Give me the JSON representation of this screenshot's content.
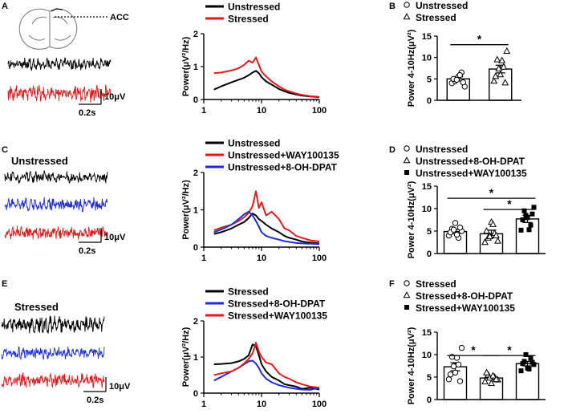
{
  "panel_labels": {
    "A": "A",
    "B": "B",
    "C": "C",
    "D": "D",
    "E": "E",
    "F": "F"
  },
  "brain": {
    "region_label": "ACC"
  },
  "traces": {
    "condition_C": "Unstressed",
    "condition_E": "Stressed",
    "scale_amplitude": "10μV",
    "scale_time": "0.2s"
  },
  "colors": {
    "black": "#000000",
    "red": "#e31a1c",
    "blue": "#1f2fd6"
  },
  "spectra": [
    {
      "legend": [
        "Unstressed",
        "Stressed"
      ],
      "colors": [
        "#000000",
        "#e31a1c"
      ]
    },
    {
      "legend": [
        "Unstressed",
        "Unstressed+WAY100135",
        "Unstressed+8-OH-DPAT"
      ],
      "colors": [
        "#000000",
        "#e31a1c",
        "#1f2fd6"
      ]
    },
    {
      "legend": [
        "Stressed",
        "Stressed+8-OH-DPAT",
        "Stressed+WAY100135"
      ],
      "colors": [
        "#000000",
        "#1f2fd6",
        "#e31a1c"
      ]
    }
  ],
  "bars_legends": [
    {
      "entries": [
        "Unstressed",
        "Stressed"
      ],
      "markers": [
        "circle",
        "triangle"
      ]
    },
    {
      "entries": [
        "Unstressed",
        "Unstressed+8-OH-DPAT",
        "Unstressed+WAY100135"
      ],
      "markers": [
        "circle",
        "triangle",
        "square"
      ]
    },
    {
      "entries": [
        "Stressed",
        "Stressed+8-OH-DPAT",
        "Stressed+WAY100135"
      ],
      "markers": [
        "circle",
        "triangle",
        "square"
      ]
    }
  ],
  "chart_data": [
    {
      "type": "line",
      "panel": "A",
      "title": "",
      "xlabel": "",
      "ylabel": "Power(μV²/Hz)",
      "xscale": "log",
      "xlim": [
        1,
        100
      ],
      "ylim": [
        0,
        2
      ],
      "xticks": [
        "1",
        "10",
        "100"
      ],
      "yticks": [
        "0",
        "1",
        "2"
      ],
      "series": [
        {
          "name": "Unstressed",
          "color": "#000000",
          "x": [
            1.5,
            2,
            3,
            4,
            5,
            6,
            7,
            8,
            9,
            10,
            12,
            15,
            20,
            25,
            30,
            40,
            50,
            70,
            100
          ],
          "y": [
            0.3,
            0.4,
            0.52,
            0.6,
            0.66,
            0.74,
            0.82,
            0.87,
            0.8,
            0.68,
            0.55,
            0.45,
            0.32,
            0.25,
            0.2,
            0.15,
            0.12,
            0.09,
            0.07
          ]
        },
        {
          "name": "Stressed",
          "color": "#e31a1c",
          "x": [
            1.5,
            2,
            3,
            4,
            5,
            6,
            7,
            8,
            9,
            10,
            12,
            15,
            20,
            25,
            30,
            40,
            50,
            70,
            100
          ],
          "y": [
            0.8,
            0.82,
            0.88,
            0.95,
            1.05,
            1.18,
            1.12,
            1.28,
            1.05,
            0.85,
            0.7,
            0.55,
            0.4,
            0.3,
            0.25,
            0.18,
            0.14,
            0.1,
            0.08
          ]
        }
      ]
    },
    {
      "type": "bar",
      "panel": "B",
      "ylabel": "Power 4-10Hz(μV²)",
      "ylim": [
        0,
        15
      ],
      "yticks": [
        "0",
        "5",
        "10",
        "15"
      ],
      "categories": [
        "Unstressed",
        "Stressed"
      ],
      "values": [
        5.0,
        7.3
      ],
      "errors": [
        0.5,
        0.9
      ],
      "points": [
        [
          4.0,
          4.5,
          5.5,
          6.5,
          3.2,
          5.0,
          4.8,
          5.9,
          4.2
        ],
        [
          4.5,
          9.5,
          6.0,
          7.8,
          11.5,
          5.6,
          7.4,
          9.3,
          4.1
        ]
      ],
      "markers": [
        "circle",
        "triangle"
      ],
      "significance": [
        {
          "pair": [
            0,
            1
          ],
          "label": "*"
        }
      ]
    },
    {
      "type": "line",
      "panel": "C",
      "title": "",
      "xlabel": "",
      "ylabel": "Power(μV²/Hz)",
      "xscale": "log",
      "xlim": [
        1,
        100
      ],
      "ylim": [
        0,
        2
      ],
      "xticks": [
        "1",
        "10",
        "100"
      ],
      "yticks": [
        "0",
        "1",
        "2"
      ],
      "series": [
        {
          "name": "Unstressed",
          "color": "#000000",
          "x": [
            1.5,
            2,
            3,
            4,
            5,
            6,
            7,
            8,
            9,
            10,
            12,
            15,
            20,
            25,
            30,
            40,
            50,
            70,
            100
          ],
          "y": [
            0.35,
            0.4,
            0.5,
            0.6,
            0.67,
            0.78,
            0.9,
            0.85,
            0.75,
            0.7,
            0.6,
            0.5,
            0.4,
            0.3,
            0.25,
            0.2,
            0.15,
            0.12,
            0.1
          ]
        },
        {
          "name": "Unstressed+WAY100135",
          "color": "#e31a1c",
          "x": [
            1.5,
            2,
            3,
            4,
            5,
            6,
            7,
            8,
            9,
            10,
            12,
            15,
            20,
            25,
            30,
            40,
            50,
            70,
            100
          ],
          "y": [
            0.45,
            0.52,
            0.6,
            0.7,
            0.8,
            0.92,
            1.1,
            1.5,
            1.05,
            1.2,
            0.85,
            0.95,
            0.75,
            0.5,
            0.45,
            0.3,
            0.25,
            0.18,
            0.15
          ]
        },
        {
          "name": "Unstressed+8-OH-DPAT",
          "color": "#1f2fd6",
          "x": [
            1.5,
            2,
            3,
            4,
            5,
            6,
            7,
            8,
            9,
            10,
            12,
            15,
            20,
            25,
            30,
            40,
            50,
            70,
            100
          ],
          "y": [
            0.4,
            0.47,
            0.6,
            0.75,
            0.88,
            0.95,
            0.85,
            0.7,
            0.55,
            0.4,
            0.3,
            0.25,
            0.2,
            0.16,
            0.14,
            0.11,
            0.1,
            0.09,
            0.08
          ]
        }
      ]
    },
    {
      "type": "bar",
      "panel": "D",
      "ylabel": "Power 4-10Hz(μV²)",
      "ylim": [
        0,
        15
      ],
      "yticks": [
        "0",
        "5",
        "10",
        "15"
      ],
      "categories": [
        "Unstressed",
        "Unstressed+8-OH-DPAT",
        "Unstressed+WAY100135"
      ],
      "values": [
        4.9,
        4.4,
        7.7
      ],
      "errors": [
        0.5,
        0.8,
        0.8
      ],
      "points": [
        [
          4.0,
          5.5,
          6.8,
          3.5,
          5.0,
          4.7,
          5.3,
          4.2,
          5.8
        ],
        [
          2.5,
          3.5,
          7.0,
          4.5,
          2.8,
          5.0,
          3.8,
          6.5,
          4.0
        ],
        [
          5.2,
          9.5,
          8.0,
          6.3,
          10.3,
          7.5,
          8.5,
          5.3,
          8.8
        ]
      ],
      "markers": [
        "circle",
        "triangle",
        "square"
      ],
      "significance": [
        {
          "pair": [
            0,
            2
          ],
          "label": "*"
        },
        {
          "pair": [
            1,
            2
          ],
          "label": "*"
        }
      ]
    },
    {
      "type": "line",
      "panel": "E",
      "title": "",
      "xlabel": "",
      "ylabel": "Power(μV²/Hz)",
      "xscale": "log",
      "xlim": [
        1,
        100
      ],
      "ylim": [
        0,
        2
      ],
      "xticks": [
        "1",
        "10",
        "100"
      ],
      "yticks": [
        "0",
        "1",
        "2"
      ],
      "series": [
        {
          "name": "Stressed",
          "color": "#000000",
          "x": [
            1.5,
            2,
            3,
            4,
            5,
            6,
            7,
            8,
            9,
            10,
            12,
            15,
            20,
            25,
            30,
            40,
            50,
            70,
            100
          ],
          "y": [
            0.8,
            0.81,
            0.83,
            0.88,
            0.95,
            1.05,
            1.35,
            1.3,
            1.05,
            0.8,
            0.6,
            0.45,
            0.35,
            0.25,
            0.22,
            0.18,
            0.12,
            0.15,
            0.1
          ]
        },
        {
          "name": "Stressed+8-OH-DPAT",
          "color": "#1f2fd6",
          "x": [
            1.5,
            2,
            3,
            4,
            5,
            6,
            7,
            8,
            9,
            10,
            12,
            15,
            20,
            25,
            30,
            40,
            50,
            70,
            100
          ],
          "y": [
            0.35,
            0.45,
            0.6,
            0.7,
            0.8,
            0.88,
            0.9,
            0.82,
            0.7,
            0.55,
            0.4,
            0.3,
            0.22,
            0.18,
            0.15,
            0.12,
            0.1,
            0.09,
            0.15
          ]
        },
        {
          "name": "Stressed+WAY100135",
          "color": "#e31a1c",
          "x": [
            1.5,
            2,
            3,
            4,
            5,
            6,
            7,
            8,
            9,
            10,
            12,
            15,
            20,
            25,
            30,
            40,
            50,
            70,
            100
          ],
          "y": [
            0.5,
            0.55,
            0.6,
            0.7,
            0.82,
            0.95,
            1.1,
            1.4,
            1.15,
            1.0,
            0.85,
            0.8,
            0.55,
            0.45,
            0.4,
            0.3,
            0.25,
            0.18,
            0.15
          ]
        }
      ]
    },
    {
      "type": "bar",
      "panel": "F",
      "ylabel": "Power 4-10Hz(μV²)",
      "ylim": [
        0,
        15
      ],
      "yticks": [
        "0",
        "5",
        "10",
        "15"
      ],
      "categories": [
        "Stressed",
        "Stressed+8-OH-DPAT",
        "Stressed+WAY100135"
      ],
      "values": [
        7.3,
        4.8,
        8.0
      ],
      "errors": [
        0.9,
        0.4,
        0.5
      ],
      "points": [
        [
          4.5,
          9.5,
          6.0,
          7.8,
          11.5,
          5.6,
          7.4,
          9.3,
          4.1
        ],
        [
          4.0,
          5.5,
          3.6,
          5.0,
          4.4,
          6.0,
          4.8,
          5.3,
          4.5
        ],
        [
          6.4,
          8.5,
          7.0,
          9.2,
          7.8,
          8.0,
          10.0,
          6.8,
          8.3
        ]
      ],
      "markers": [
        "circle",
        "triangle",
        "square"
      ],
      "significance": [
        {
          "pair": [
            0,
            1
          ],
          "label": "*"
        },
        {
          "pair": [
            1,
            2
          ],
          "label": "*"
        }
      ]
    }
  ]
}
